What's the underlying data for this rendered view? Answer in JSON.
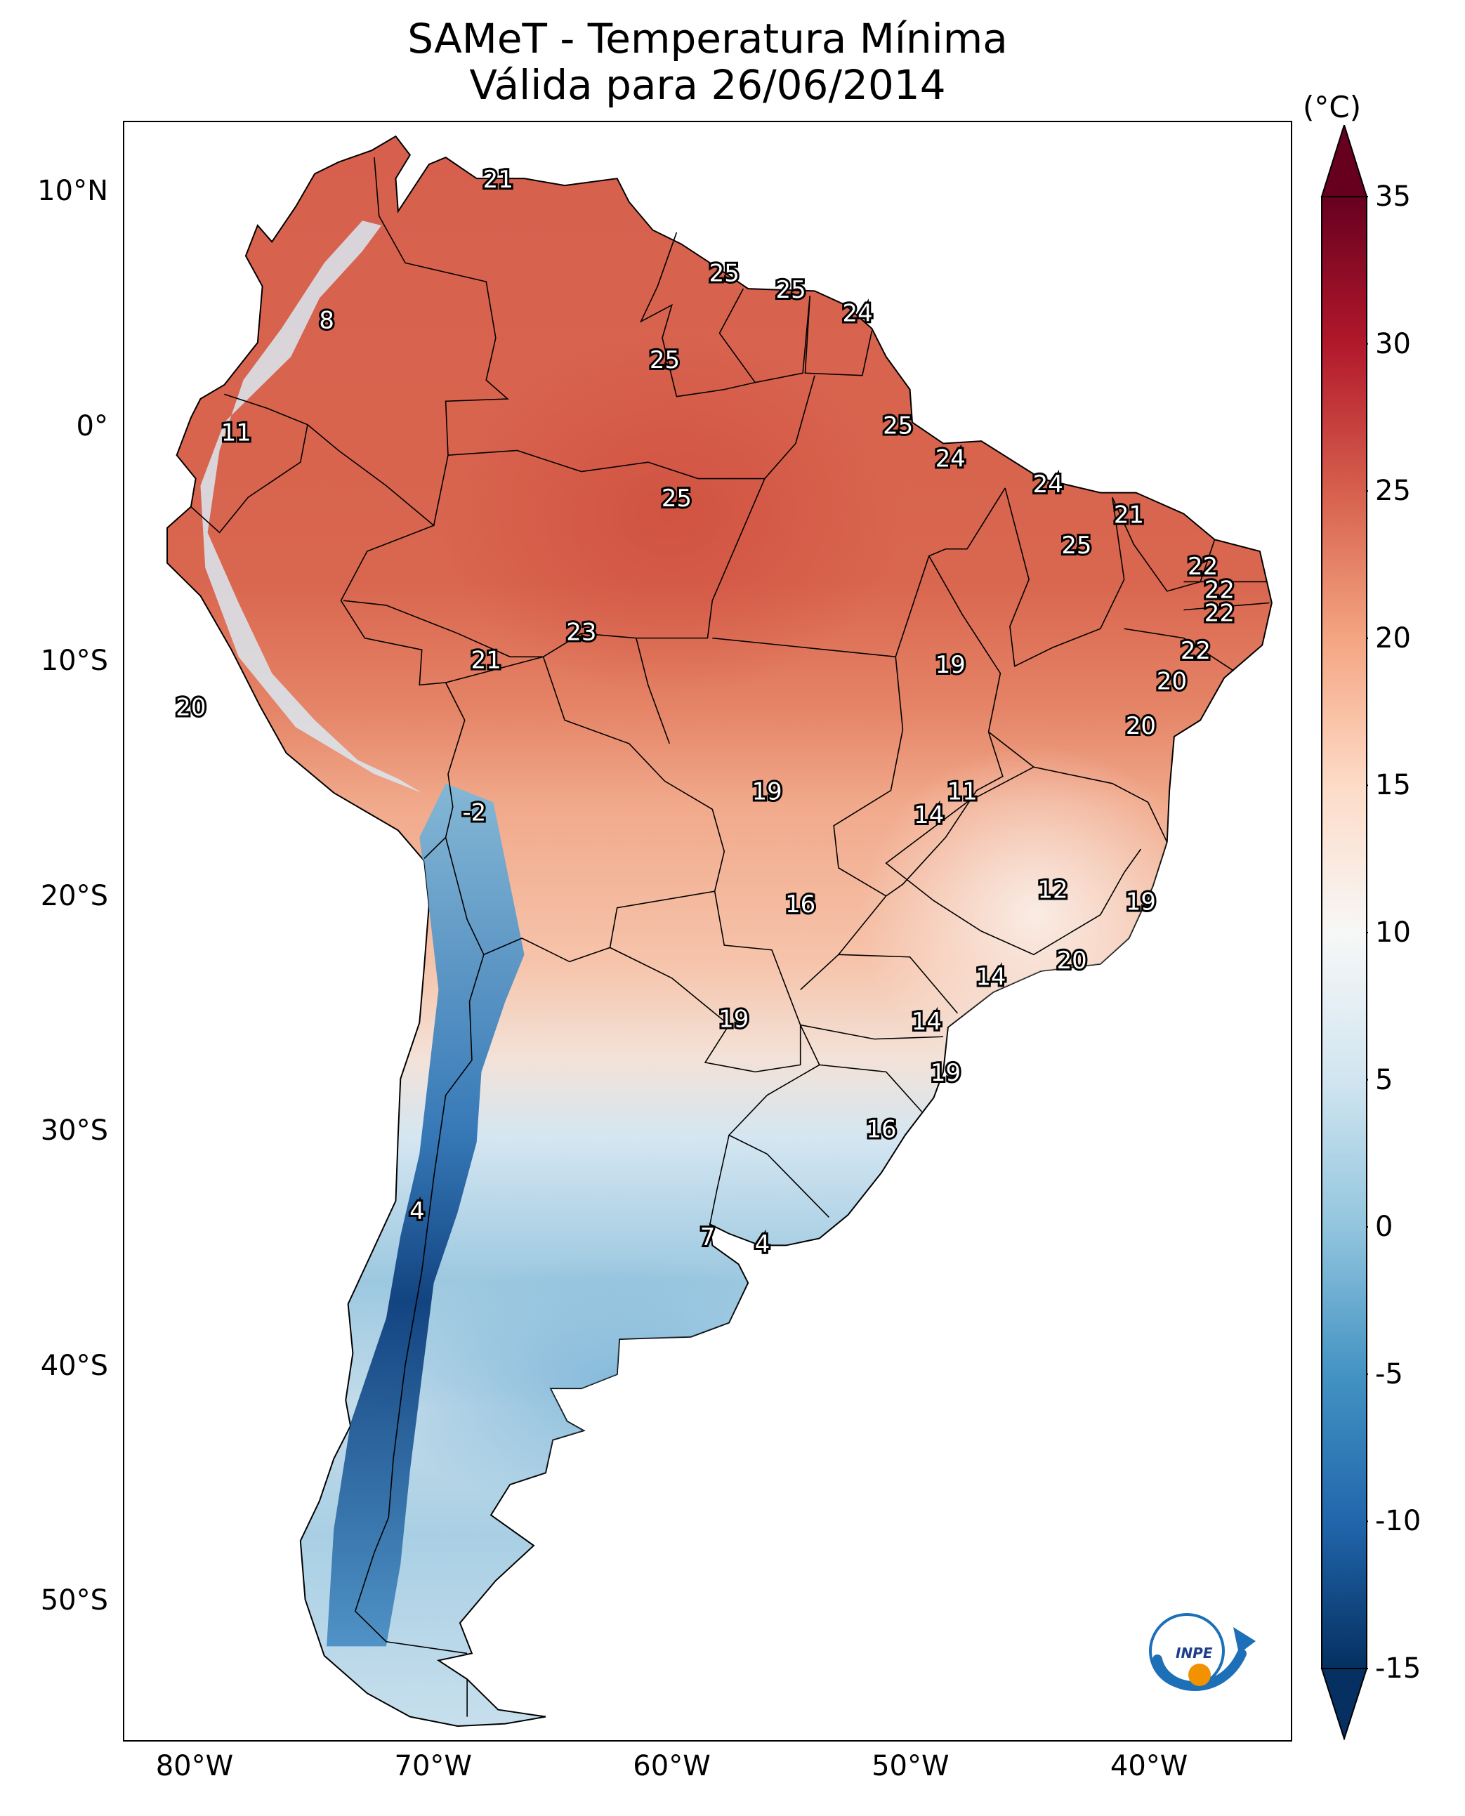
{
  "title": {
    "line1": "SAMeT - Temperatura Mínima",
    "line2": "Válida para 26/06/2014"
  },
  "axes": {
    "lat_labels": [
      "10°N",
      "0°",
      "10°S",
      "20°S",
      "30°S",
      "40°S",
      "50°S"
    ],
    "lat_values": [
      10,
      0,
      -10,
      -20,
      -30,
      -40,
      -50
    ],
    "lon_labels": [
      "80°W",
      "70°W",
      "60°W",
      "50°W",
      "40°W"
    ],
    "lon_values": [
      -80,
      -70,
      -60,
      -50,
      -40
    ],
    "lon_range": [
      -83,
      -34
    ],
    "lat_range": [
      13,
      -56
    ]
  },
  "colorbar": {
    "unit": "(°C)",
    "ticks": [
      "35",
      "30",
      "25",
      "20",
      "15",
      "10",
      "5",
      "0",
      "-5",
      "-10",
      "-15"
    ],
    "tick_values": [
      35,
      30,
      25,
      20,
      15,
      10,
      5,
      0,
      -5,
      -10,
      -15
    ],
    "range": [
      -15,
      35
    ],
    "extend": "both",
    "colormap": "RdBu_r",
    "colors": [
      "#053061",
      "#2166ac",
      "#4393c3",
      "#92c5de",
      "#d1e5f0",
      "#f7f7f7",
      "#fddbc7",
      "#f4a582",
      "#d6604d",
      "#b2182b",
      "#67001f"
    ]
  },
  "stations": [
    {
      "value": "21",
      "lon": -67.3,
      "lat": 10.5
    },
    {
      "value": "8",
      "lon": -74.5,
      "lat": 4.5
    },
    {
      "value": "25",
      "lon": -57.8,
      "lat": 6.5
    },
    {
      "value": "25",
      "lon": -55.0,
      "lat": 5.8
    },
    {
      "value": "24",
      "lon": -52.2,
      "lat": 4.8
    },
    {
      "value": "25",
      "lon": -60.3,
      "lat": 2.8
    },
    {
      "value": "11",
      "lon": -78.3,
      "lat": -0.3
    },
    {
      "value": "25",
      "lon": -50.5,
      "lat": 0.0
    },
    {
      "value": "24",
      "lon": -48.3,
      "lat": -1.4
    },
    {
      "value": "24",
      "lon": -44.2,
      "lat": -2.5
    },
    {
      "value": "25",
      "lon": -59.8,
      "lat": -3.1
    },
    {
      "value": "21",
      "lon": -40.8,
      "lat": -3.8
    },
    {
      "value": "25",
      "lon": -43.0,
      "lat": -5.1
    },
    {
      "value": "22",
      "lon": -37.7,
      "lat": -6.0
    },
    {
      "value": "22",
      "lon": -37.0,
      "lat": -7.0
    },
    {
      "value": "22",
      "lon": -37.0,
      "lat": -8.0
    },
    {
      "value": "23",
      "lon": -63.8,
      "lat": -8.8
    },
    {
      "value": "22",
      "lon": -38.0,
      "lat": -9.6
    },
    {
      "value": "21",
      "lon": -67.8,
      "lat": -10.0
    },
    {
      "value": "19",
      "lon": -48.3,
      "lat": -10.2
    },
    {
      "value": "20",
      "lon": -39.0,
      "lat": -10.9
    },
    {
      "value": "20",
      "lon": -80.2,
      "lat": -12.0
    },
    {
      "value": "20",
      "lon": -40.3,
      "lat": -12.8
    },
    {
      "value": "19",
      "lon": -56.0,
      "lat": -15.6
    },
    {
      "value": "11",
      "lon": -47.8,
      "lat": -15.6
    },
    {
      "value": "14",
      "lon": -49.2,
      "lat": -16.6
    },
    {
      "value": "-2",
      "lon": -68.3,
      "lat": -16.5
    },
    {
      "value": "12",
      "lon": -44.0,
      "lat": -19.8
    },
    {
      "value": "16",
      "lon": -54.6,
      "lat": -20.4
    },
    {
      "value": "19",
      "lon": -40.3,
      "lat": -20.3
    },
    {
      "value": "20",
      "lon": -43.2,
      "lat": -22.8
    },
    {
      "value": "14",
      "lon": -46.6,
      "lat": -23.5
    },
    {
      "value": "19",
      "lon": -57.4,
      "lat": -25.3
    },
    {
      "value": "14",
      "lon": -49.3,
      "lat": -25.4
    },
    {
      "value": "19",
      "lon": -48.5,
      "lat": -27.6
    },
    {
      "value": "16",
      "lon": -51.2,
      "lat": -30.0
    },
    {
      "value": "4",
      "lon": -70.7,
      "lat": -33.5
    },
    {
      "value": "7",
      "lon": -58.5,
      "lat": -34.6
    },
    {
      "value": "4",
      "lon": -56.2,
      "lat": -34.9
    }
  ],
  "logo": {
    "text": "INPE"
  }
}
